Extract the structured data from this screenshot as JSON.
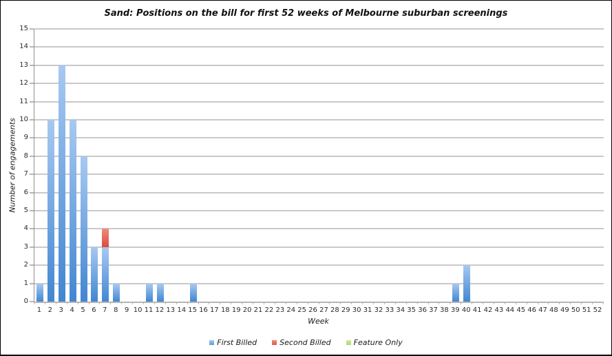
{
  "chart_data": {
    "type": "bar",
    "stacked": true,
    "title": "Sand: Positions on the bill for first 52 weeks of Melbourne suburban screenings",
    "xlabel": "Week",
    "ylabel": "Number of engagements",
    "ylim": [
      0,
      15
    ],
    "ystep": 1,
    "grid": true,
    "legend_position": "bottom",
    "categories": [
      1,
      2,
      3,
      4,
      5,
      6,
      7,
      8,
      9,
      10,
      11,
      12,
      13,
      14,
      15,
      16,
      17,
      18,
      19,
      20,
      21,
      22,
      23,
      24,
      25,
      26,
      27,
      28,
      29,
      30,
      31,
      32,
      33,
      34,
      35,
      36,
      37,
      38,
      39,
      40,
      41,
      42,
      43,
      44,
      45,
      46,
      47,
      48,
      49,
      50,
      51,
      52
    ],
    "series": [
      {
        "name": "First Billed",
        "legend_color": "#5d9bd9",
        "color_top": "#a7c9f2",
        "color_bottom": "#4286d1",
        "values": [
          1,
          10,
          13,
          10,
          8,
          3,
          3,
          1,
          0,
          0,
          1,
          1,
          0,
          0,
          1,
          0,
          0,
          0,
          0,
          0,
          0,
          0,
          0,
          0,
          0,
          0,
          0,
          0,
          0,
          0,
          0,
          0,
          0,
          0,
          0,
          0,
          0,
          0,
          1,
          2,
          0,
          0,
          0,
          0,
          0,
          0,
          0,
          0,
          0,
          0,
          0,
          0
        ]
      },
      {
        "name": "Second Billed",
        "legend_color": "#e05a50",
        "color_top": "#f2897b",
        "color_bottom": "#d94b40",
        "values": [
          0,
          0,
          0,
          0,
          0,
          0,
          1,
          0,
          0,
          0,
          0,
          0,
          0,
          0,
          0,
          0,
          0,
          0,
          0,
          0,
          0,
          0,
          0,
          0,
          0,
          0,
          0,
          0,
          0,
          0,
          0,
          0,
          0,
          0,
          0,
          0,
          0,
          0,
          0,
          0,
          0,
          0,
          0,
          0,
          0,
          0,
          0,
          0,
          0,
          0,
          0,
          0
        ]
      },
      {
        "name": "Feature Only",
        "legend_color": "#aed767",
        "color_top": "#d5e9a4",
        "color_bottom": "#9cc848",
        "values": [
          0,
          0,
          0,
          0,
          0,
          0,
          0,
          0,
          0,
          0,
          0,
          0,
          0,
          0,
          0,
          0,
          0,
          0,
          0,
          0,
          0,
          0,
          0,
          0,
          0,
          0,
          0,
          0,
          0,
          0,
          0,
          0,
          0,
          0,
          0,
          0,
          0,
          0,
          0,
          0,
          0,
          0,
          0,
          0,
          0,
          0,
          0,
          0,
          0,
          0,
          0,
          0
        ]
      }
    ]
  },
  "colors": {
    "grid": "#c9c9c9",
    "tick": "#b6b6b6",
    "axis": "#8e8e8e"
  }
}
